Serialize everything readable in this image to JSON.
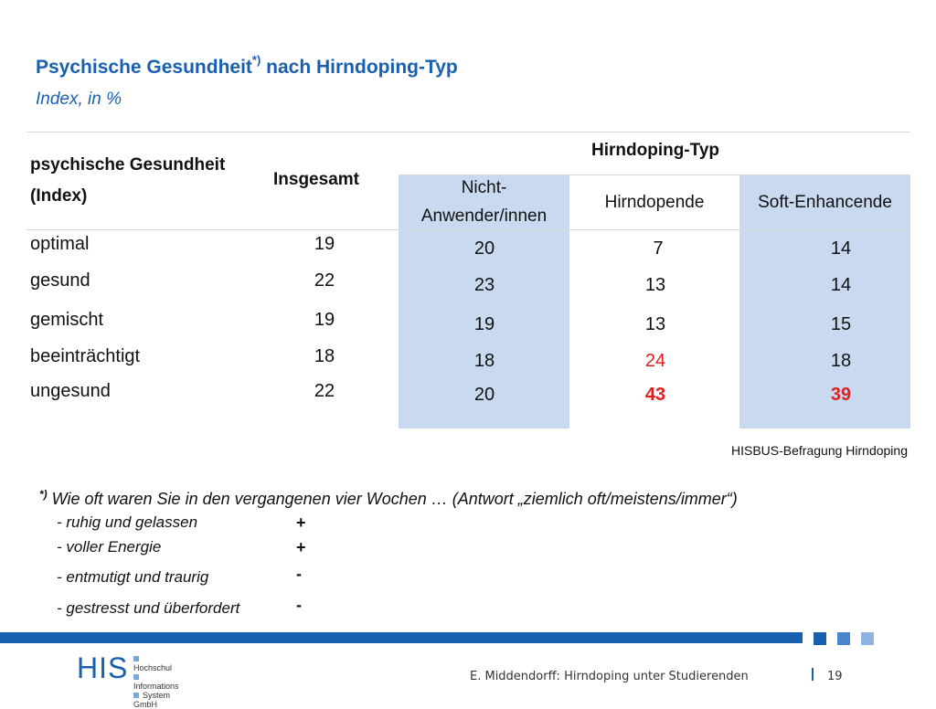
{
  "title": {
    "main": "Psychische Gesundheit",
    "sup": "*)",
    "rest": " nach Hirndoping-Typ",
    "subtitle": "Index, in %"
  },
  "table": {
    "row_header_line1": "psychische Gesundheit",
    "row_header_line2": "(Index)",
    "col_insgesamt": "Insgesamt",
    "group_header": "Hirndoping-Typ",
    "col_nicht_line1": "Nicht-",
    "col_nicht_line2": "Anwender/innen",
    "col_hirndopende": "Hirndopende",
    "col_soft": "Soft-Enhancende",
    "rows": [
      {
        "label": "optimal",
        "insgesamt": "19",
        "nicht": "20",
        "hirndopende": "7",
        "soft": "14"
      },
      {
        "label": "gesund",
        "insgesamt": "22",
        "nicht": "23",
        "hirndopende": "13",
        "soft": "14"
      },
      {
        "label": "gemischt",
        "insgesamt": "19",
        "nicht": "19",
        "hirndopende": "13",
        "soft": "15"
      },
      {
        "label": "beeinträchtigt",
        "insgesamt": "18",
        "nicht": "18",
        "hirndopende": "24",
        "soft": "18"
      },
      {
        "label": "ungesund",
        "insgesamt": "22",
        "nicht": "20",
        "hirndopende": "43",
        "soft": "39"
      }
    ]
  },
  "source": "HISBUS-Befragung Hirndoping",
  "footnote": {
    "marker": "*)",
    "text": " Wie oft waren Sie in den vergangenen vier Wochen … (Antwort „ziemlich oft/meistens/immer“)",
    "items": [
      {
        "text": "- ruhig und gelassen",
        "sign": "+"
      },
      {
        "text": "- voller Energie",
        "sign": "+"
      },
      {
        "text": "- entmutigt und traurig",
        "sign": "-"
      },
      {
        "text": "- gestresst und überfordert",
        "sign": "-"
      }
    ]
  },
  "footer": {
    "logo_main": "HIS",
    "logo_lines": [
      "Hochschul",
      "Informations",
      "System GmbH"
    ],
    "text": "E. Middendorff: Hirndoping unter Studierenden",
    "page": "19"
  },
  "colors": {
    "accent": "#1a60b0",
    "highlight": "#c9daf0",
    "alert": "#e02020"
  }
}
